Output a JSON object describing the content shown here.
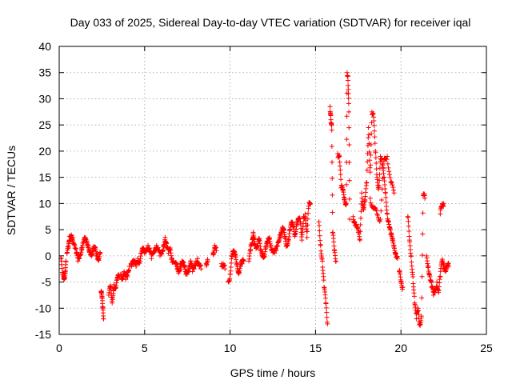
{
  "chart_data": {
    "type": "scatter",
    "title": "Day 033 of 2025, Sidereal Day-to-day VTEC variation (SDTVAR) for receiver iqal",
    "xlabel": "GPS time / hours",
    "ylabel": "SDTVAR / TECUs",
    "xlim": [
      0,
      25
    ],
    "ylim": [
      -15,
      40
    ],
    "xticks": [
      0,
      5,
      10,
      15,
      20,
      25
    ],
    "yticks": [
      -15,
      -10,
      -5,
      0,
      5,
      10,
      15,
      20,
      25,
      30,
      35,
      40
    ],
    "grid": true,
    "marker": "+",
    "color": "#ff0000",
    "series": [
      {
        "name": "SDTVAR",
        "segments": [
          [
            [
              0.1,
              -0.5
            ],
            [
              0.2,
              -3.5
            ],
            [
              0.3,
              -4.0
            ],
            [
              0.35,
              -3.0
            ],
            [
              0.4,
              -1.0
            ]
          ],
          [
            [
              0.45,
              0.5
            ],
            [
              0.55,
              1.5
            ],
            [
              0.6,
              3.0
            ],
            [
              0.7,
              4.0
            ],
            [
              0.8,
              3.5
            ],
            [
              0.9,
              2.0
            ],
            [
              1.0,
              0.5
            ],
            [
              1.1,
              -1.0
            ],
            [
              1.2,
              0.0
            ],
            [
              1.3,
              1.5
            ],
            [
              1.4,
              2.5
            ],
            [
              1.5,
              3.0
            ],
            [
              1.6,
              2.5
            ],
            [
              1.7,
              2.0
            ],
            [
              1.8,
              1.0
            ],
            [
              1.9,
              0.0
            ],
            [
              2.0,
              1.0
            ],
            [
              2.1,
              1.5
            ],
            [
              2.2,
              0.5
            ],
            [
              2.3,
              -0.5
            ],
            [
              2.4,
              0.5
            ]
          ],
          [
            [
              2.45,
              -7.0
            ],
            [
              2.5,
              -8.0
            ],
            [
              2.55,
              -10.0
            ],
            [
              2.6,
              -12.0
            ]
          ],
          [
            [
              2.9,
              -7.5
            ],
            [
              3.0,
              -6.0
            ],
            [
              3.1,
              -9.0
            ],
            [
              3.2,
              -5.5
            ],
            [
              3.3,
              -6.0
            ],
            [
              3.4,
              -4.5
            ],
            [
              3.5,
              -4.0
            ]
          ],
          [
            [
              3.6,
              -3.5
            ],
            [
              3.7,
              -4.0
            ],
            [
              3.8,
              -3.0
            ],
            [
              3.9,
              -4.5
            ],
            [
              4.0,
              -4.0
            ],
            [
              4.1,
              -2.0
            ]
          ],
          [
            [
              4.2,
              -1.5
            ],
            [
              4.3,
              -1.0
            ],
            [
              4.4,
              -1.5
            ],
            [
              4.5,
              -2.0
            ],
            [
              4.6,
              -0.5
            ],
            [
              4.7,
              -1.0
            ],
            [
              4.8,
              0.5
            ],
            [
              4.9,
              1.0
            ],
            [
              5.0,
              0.5
            ],
            [
              5.1,
              1.5
            ],
            [
              5.2,
              2.0
            ],
            [
              5.3,
              1.0
            ],
            [
              5.4,
              -0.5
            ],
            [
              5.5,
              0.5
            ],
            [
              5.6,
              1.5
            ],
            [
              5.7,
              2.0
            ],
            [
              5.8,
              1.0
            ],
            [
              5.9,
              0.0
            ],
            [
              6.0,
              0.5
            ],
            [
              6.1,
              2.0
            ],
            [
              6.2,
              3.5
            ],
            [
              6.3,
              1.5
            ],
            [
              6.4,
              0.5
            ],
            [
              6.5,
              1.5
            ],
            [
              6.6,
              -0.5
            ],
            [
              6.7,
              -1.0
            ]
          ],
          [
            [
              6.8,
              -1.5
            ],
            [
              6.9,
              -2.5
            ],
            [
              7.0,
              -3.0
            ],
            [
              7.1,
              -1.5
            ],
            [
              7.2,
              -1.0
            ],
            [
              7.3,
              -2.0
            ],
            [
              7.4,
              -3.5
            ],
            [
              7.5,
              -3.0
            ],
            [
              7.6,
              -2.0
            ],
            [
              7.7,
              -1.0
            ],
            [
              7.8,
              -3.0
            ],
            [
              7.9,
              -2.5
            ],
            [
              8.0,
              -1.0
            ],
            [
              8.1,
              -0.5
            ],
            [
              8.2,
              -2.0
            ],
            [
              8.3,
              -2.5
            ]
          ],
          [
            [
              8.6,
              -1.5
            ],
            [
              8.7,
              -1.0
            ]
          ],
          [
            [
              9.0,
              0.5
            ],
            [
              9.1,
              2.0
            ],
            [
              9.2,
              1.0
            ]
          ],
          [
            [
              9.5,
              -1.5
            ],
            [
              9.6,
              -1.5
            ],
            [
              9.7,
              -2.5
            ]
          ],
          [
            [
              9.9,
              -5.0
            ],
            [
              10.0,
              -3.5
            ],
            [
              10.1,
              0.0
            ],
            [
              10.2,
              0.5
            ],
            [
              10.3,
              0.0
            ],
            [
              10.4,
              -1.5
            ],
            [
              10.5,
              -3.0
            ],
            [
              10.6,
              -2.0
            ],
            [
              10.7,
              -1.5
            ],
            [
              10.8,
              -1.0
            ]
          ],
          [
            [
              11.1,
              -1.0
            ],
            [
              11.2,
              1.0
            ],
            [
              11.3,
              2.5
            ],
            [
              11.35,
              4.5
            ],
            [
              11.4,
              3.5
            ],
            [
              11.5,
              2.0
            ],
            [
              11.6,
              1.5
            ],
            [
              11.7,
              3.0
            ],
            [
              11.8,
              1.0
            ],
            [
              11.9,
              0.5
            ],
            [
              12.0,
              0.0
            ],
            [
              12.1,
              1.5
            ],
            [
              12.2,
              2.5
            ],
            [
              12.3,
              3.5
            ],
            [
              12.4,
              2.0
            ],
            [
              12.5,
              1.0
            ],
            [
              12.6,
              0.5
            ],
            [
              12.7,
              1.0
            ],
            [
              12.8,
              2.5
            ],
            [
              12.9,
              4.0
            ],
            [
              13.0,
              4.5
            ],
            [
              13.1,
              5.0
            ],
            [
              13.2,
              3.5
            ],
            [
              13.3,
              2.0
            ],
            [
              13.4,
              3.0
            ],
            [
              13.5,
              5.0
            ],
            [
              13.6,
              6.0
            ],
            [
              13.7,
              5.5
            ],
            [
              13.8,
              4.0
            ],
            [
              13.9,
              6.5
            ],
            [
              14.0,
              7.0
            ],
            [
              14.1,
              6.5
            ],
            [
              14.2,
              3.0
            ],
            [
              14.3,
              7.5
            ],
            [
              14.4,
              8.0
            ],
            [
              14.5,
              3.5
            ],
            [
              14.6,
              9.5
            ],
            [
              14.7,
              10.0
            ]
          ],
          [
            [
              15.2,
              6.5
            ],
            [
              15.3,
              2.0
            ],
            [
              15.4,
              -1.0
            ],
            [
              15.5,
              -6.0
            ],
            [
              15.6,
              -9.0
            ],
            [
              15.7,
              -13.0
            ]
          ],
          [
            [
              15.85,
              28.5
            ],
            [
              15.9,
              26.0
            ],
            [
              15.95,
              24.0
            ],
            [
              16.0,
              4.5
            ],
            [
              16.1,
              1.0
            ],
            [
              16.2,
              -1.0
            ]
          ],
          [
            [
              16.3,
              19.5
            ],
            [
              16.4,
              19.0
            ],
            [
              16.5,
              13.0
            ],
            [
              16.6,
              12.5
            ],
            [
              16.7,
              11.0
            ],
            [
              16.8,
              10.0
            ],
            [
              16.85,
              35.0
            ],
            [
              16.9,
              33.5
            ],
            [
              16.95,
              27.5
            ],
            [
              17.0,
              7.0
            ]
          ],
          [
            [
              17.2,
              7.5
            ],
            [
              17.3,
              6.5
            ],
            [
              17.4,
              5.5
            ],
            [
              17.5,
              4.5
            ],
            [
              17.6,
              3.0
            ],
            [
              17.7,
              12.0
            ],
            [
              17.8,
              9.0
            ],
            [
              17.9,
              10.5
            ],
            [
              18.0,
              14.0
            ],
            [
              18.1,
              24.5
            ],
            [
              18.2,
              16.0
            ],
            [
              18.3,
              27.5
            ],
            [
              18.4,
              26.5
            ],
            [
              18.5,
              20.0
            ],
            [
              18.6,
              15.0
            ],
            [
              18.7,
              13.0
            ],
            [
              18.8,
              19.0
            ],
            [
              18.9,
              17.5
            ],
            [
              19.0,
              15.0
            ],
            [
              19.1,
              12.0
            ],
            [
              19.2,
              8.0
            ],
            [
              19.3,
              6.0
            ],
            [
              19.4,
              4.0
            ],
            [
              19.5,
              3.0
            ],
            [
              19.6,
              2.0
            ],
            [
              19.7,
              0.5
            ],
            [
              19.8,
              -0.5
            ]
          ],
          [
            [
              18.2,
              11.0
            ],
            [
              18.4,
              9.0
            ],
            [
              18.6,
              8.0
            ],
            [
              18.8,
              7.0
            ],
            [
              19.0,
              18.0
            ],
            [
              19.2,
              19.0
            ],
            [
              19.4,
              14.0
            ],
            [
              19.6,
              12.0
            ]
          ],
          [
            [
              19.9,
              -3.0
            ],
            [
              20.0,
              -5.0
            ],
            [
              20.1,
              -6.0
            ]
          ],
          [
            [
              20.4,
              7.5
            ],
            [
              20.5,
              3.0
            ],
            [
              20.6,
              0.0
            ],
            [
              20.7,
              -4.0
            ],
            [
              20.8,
              -9.0
            ],
            [
              20.9,
              -12.0
            ],
            [
              21.0,
              -10.0
            ],
            [
              21.1,
              -13.0
            ],
            [
              21.2,
              -11.5
            ],
            [
              21.3,
              11.5
            ],
            [
              21.4,
              11.0
            ]
          ],
          [
            [
              21.5,
              0.0
            ],
            [
              21.6,
              -2.0
            ],
            [
              21.7,
              -4.0
            ],
            [
              21.8,
              -6.0
            ],
            [
              21.9,
              -7.5
            ],
            [
              22.0,
              -6.5
            ],
            [
              22.1,
              -5.0
            ],
            [
              22.2,
              -7.0
            ],
            [
              22.3,
              -4.0
            ],
            [
              22.4,
              -1.0
            ],
            [
              22.5,
              -1.5
            ],
            [
              22.6,
              -2.5
            ],
            [
              22.7,
              -2.0
            ],
            [
              22.8,
              -2.0
            ]
          ],
          [
            [
              22.3,
              8.0
            ],
            [
              22.4,
              9.5
            ],
            [
              22.5,
              10.0
            ]
          ]
        ]
      }
    ]
  }
}
